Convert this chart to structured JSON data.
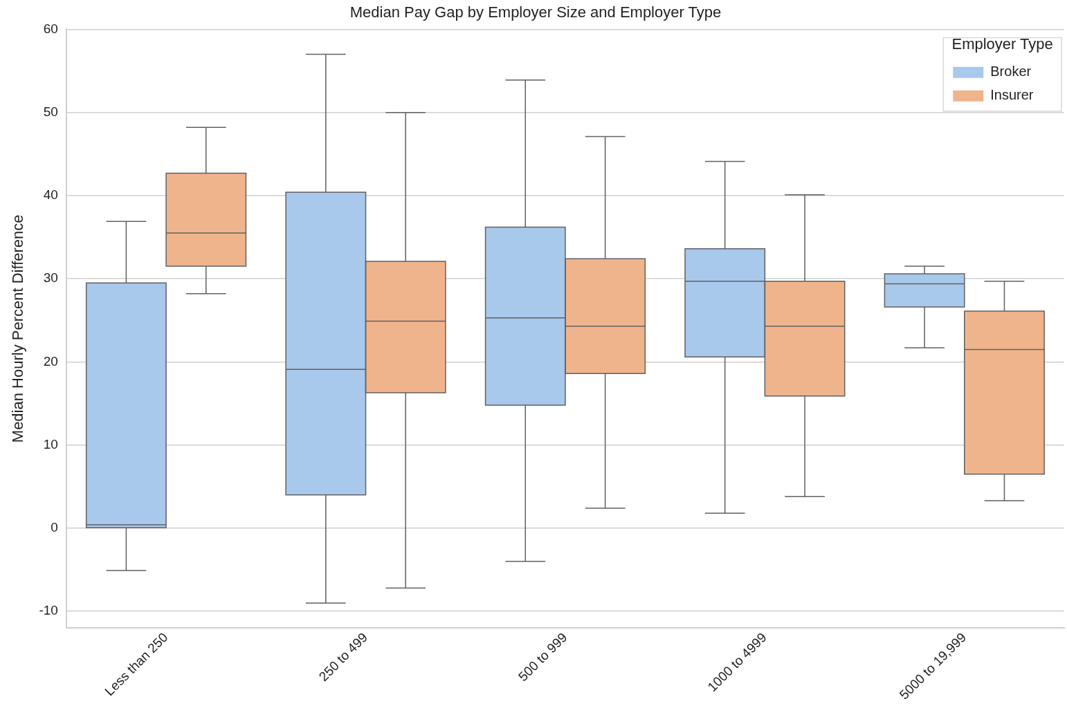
{
  "chart_data": {
    "type": "box",
    "title": "Median Pay Gap by Employer Size and Employer Type",
    "ylabel": "Median Hourly Percent Difference",
    "legend_title": "Employer Type",
    "legend": "top right",
    "grid": "y",
    "categories": [
      "Less than 250",
      "250 to 499",
      "500 to 999",
      "1000 to 4999",
      "5000 to 19,999"
    ],
    "ylim": [
      -12,
      60
    ],
    "yticks": [
      -10,
      0,
      10,
      20,
      30,
      40,
      50,
      60
    ],
    "series": [
      {
        "name": "Broker",
        "color": "#a8c8ec",
        "boxes": [
          {
            "low": -5.1,
            "q1": 0,
            "median": 0.4,
            "q3": 29.5,
            "high": 36.9
          },
          {
            "low": -9,
            "q1": 4,
            "median": 19.1,
            "q3": 40.4,
            "high": 57
          },
          {
            "low": -4,
            "q1": 14.8,
            "median": 25.3,
            "q3": 36.2,
            "high": 53.9
          },
          {
            "low": 1.8,
            "q1": 20.6,
            "median": 29.7,
            "q3": 33.6,
            "high": 44.1
          },
          {
            "low": 21.7,
            "q1": 26.6,
            "median": 29.4,
            "q3": 30.6,
            "high": 31.5
          }
        ]
      },
      {
        "name": "Insurer",
        "color": "#f0b48c",
        "boxes": [
          {
            "low": 28.2,
            "q1": 31.5,
            "median": 35.5,
            "q3": 42.7,
            "high": 48.2
          },
          {
            "low": -7.2,
            "q1": 16.3,
            "median": 24.9,
            "q3": 32.1,
            "high": 50
          },
          {
            "low": 2.4,
            "q1": 18.6,
            "median": 24.3,
            "q3": 32.4,
            "high": 47.1
          },
          {
            "low": 3.8,
            "q1": 15.9,
            "median": 24.3,
            "q3": 29.7,
            "high": 40.1
          },
          {
            "low": 3.3,
            "q1": 6.5,
            "median": 21.5,
            "q3": 26.1,
            "high": 29.7
          }
        ]
      }
    ]
  }
}
